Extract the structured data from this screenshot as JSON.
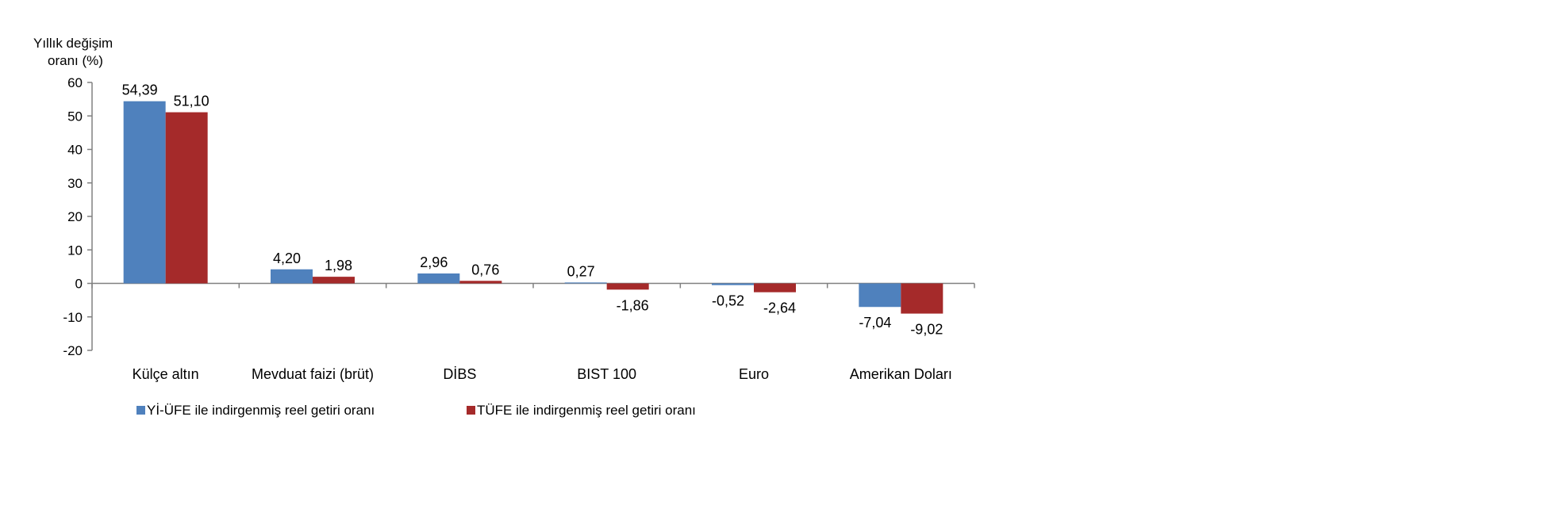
{
  "chart_data": {
    "type": "bar",
    "ylabel_lines": [
      "Yıllık değişim",
      "oranı (%)"
    ],
    "categories": [
      "Külçe altın",
      "Mevduat faizi (brüt)",
      "DİBS",
      "BIST 100",
      "Euro",
      "Amerikan Doları"
    ],
    "series": [
      {
        "name": "Yİ-ÜFE ile indirgenmiş reel getiri oranı",
        "color": "#4f81bd",
        "values": [
          54.39,
          4.2,
          2.96,
          0.27,
          -0.52,
          -7.04
        ],
        "labels": [
          "54,39",
          "4,20",
          "2,96",
          "0,27",
          "-0,52",
          "-7,04"
        ]
      },
      {
        "name": "TÜFE ile indirgenmiş reel getiri oranı",
        "color": "#a52a2a",
        "values": [
          51.1,
          1.98,
          0.76,
          -1.86,
          -2.64,
          -9.02
        ],
        "labels": [
          "51,10",
          "1,98",
          "0,76",
          "-1,86",
          "-2,64",
          "-9,02"
        ]
      }
    ],
    "yticks": [
      "60",
      "50",
      "40",
      "30",
      "20",
      "10",
      "0",
      "-10",
      "-20"
    ],
    "ylim": [
      -20,
      60
    ],
    "grid": false,
    "legend_position": "bottom"
  }
}
